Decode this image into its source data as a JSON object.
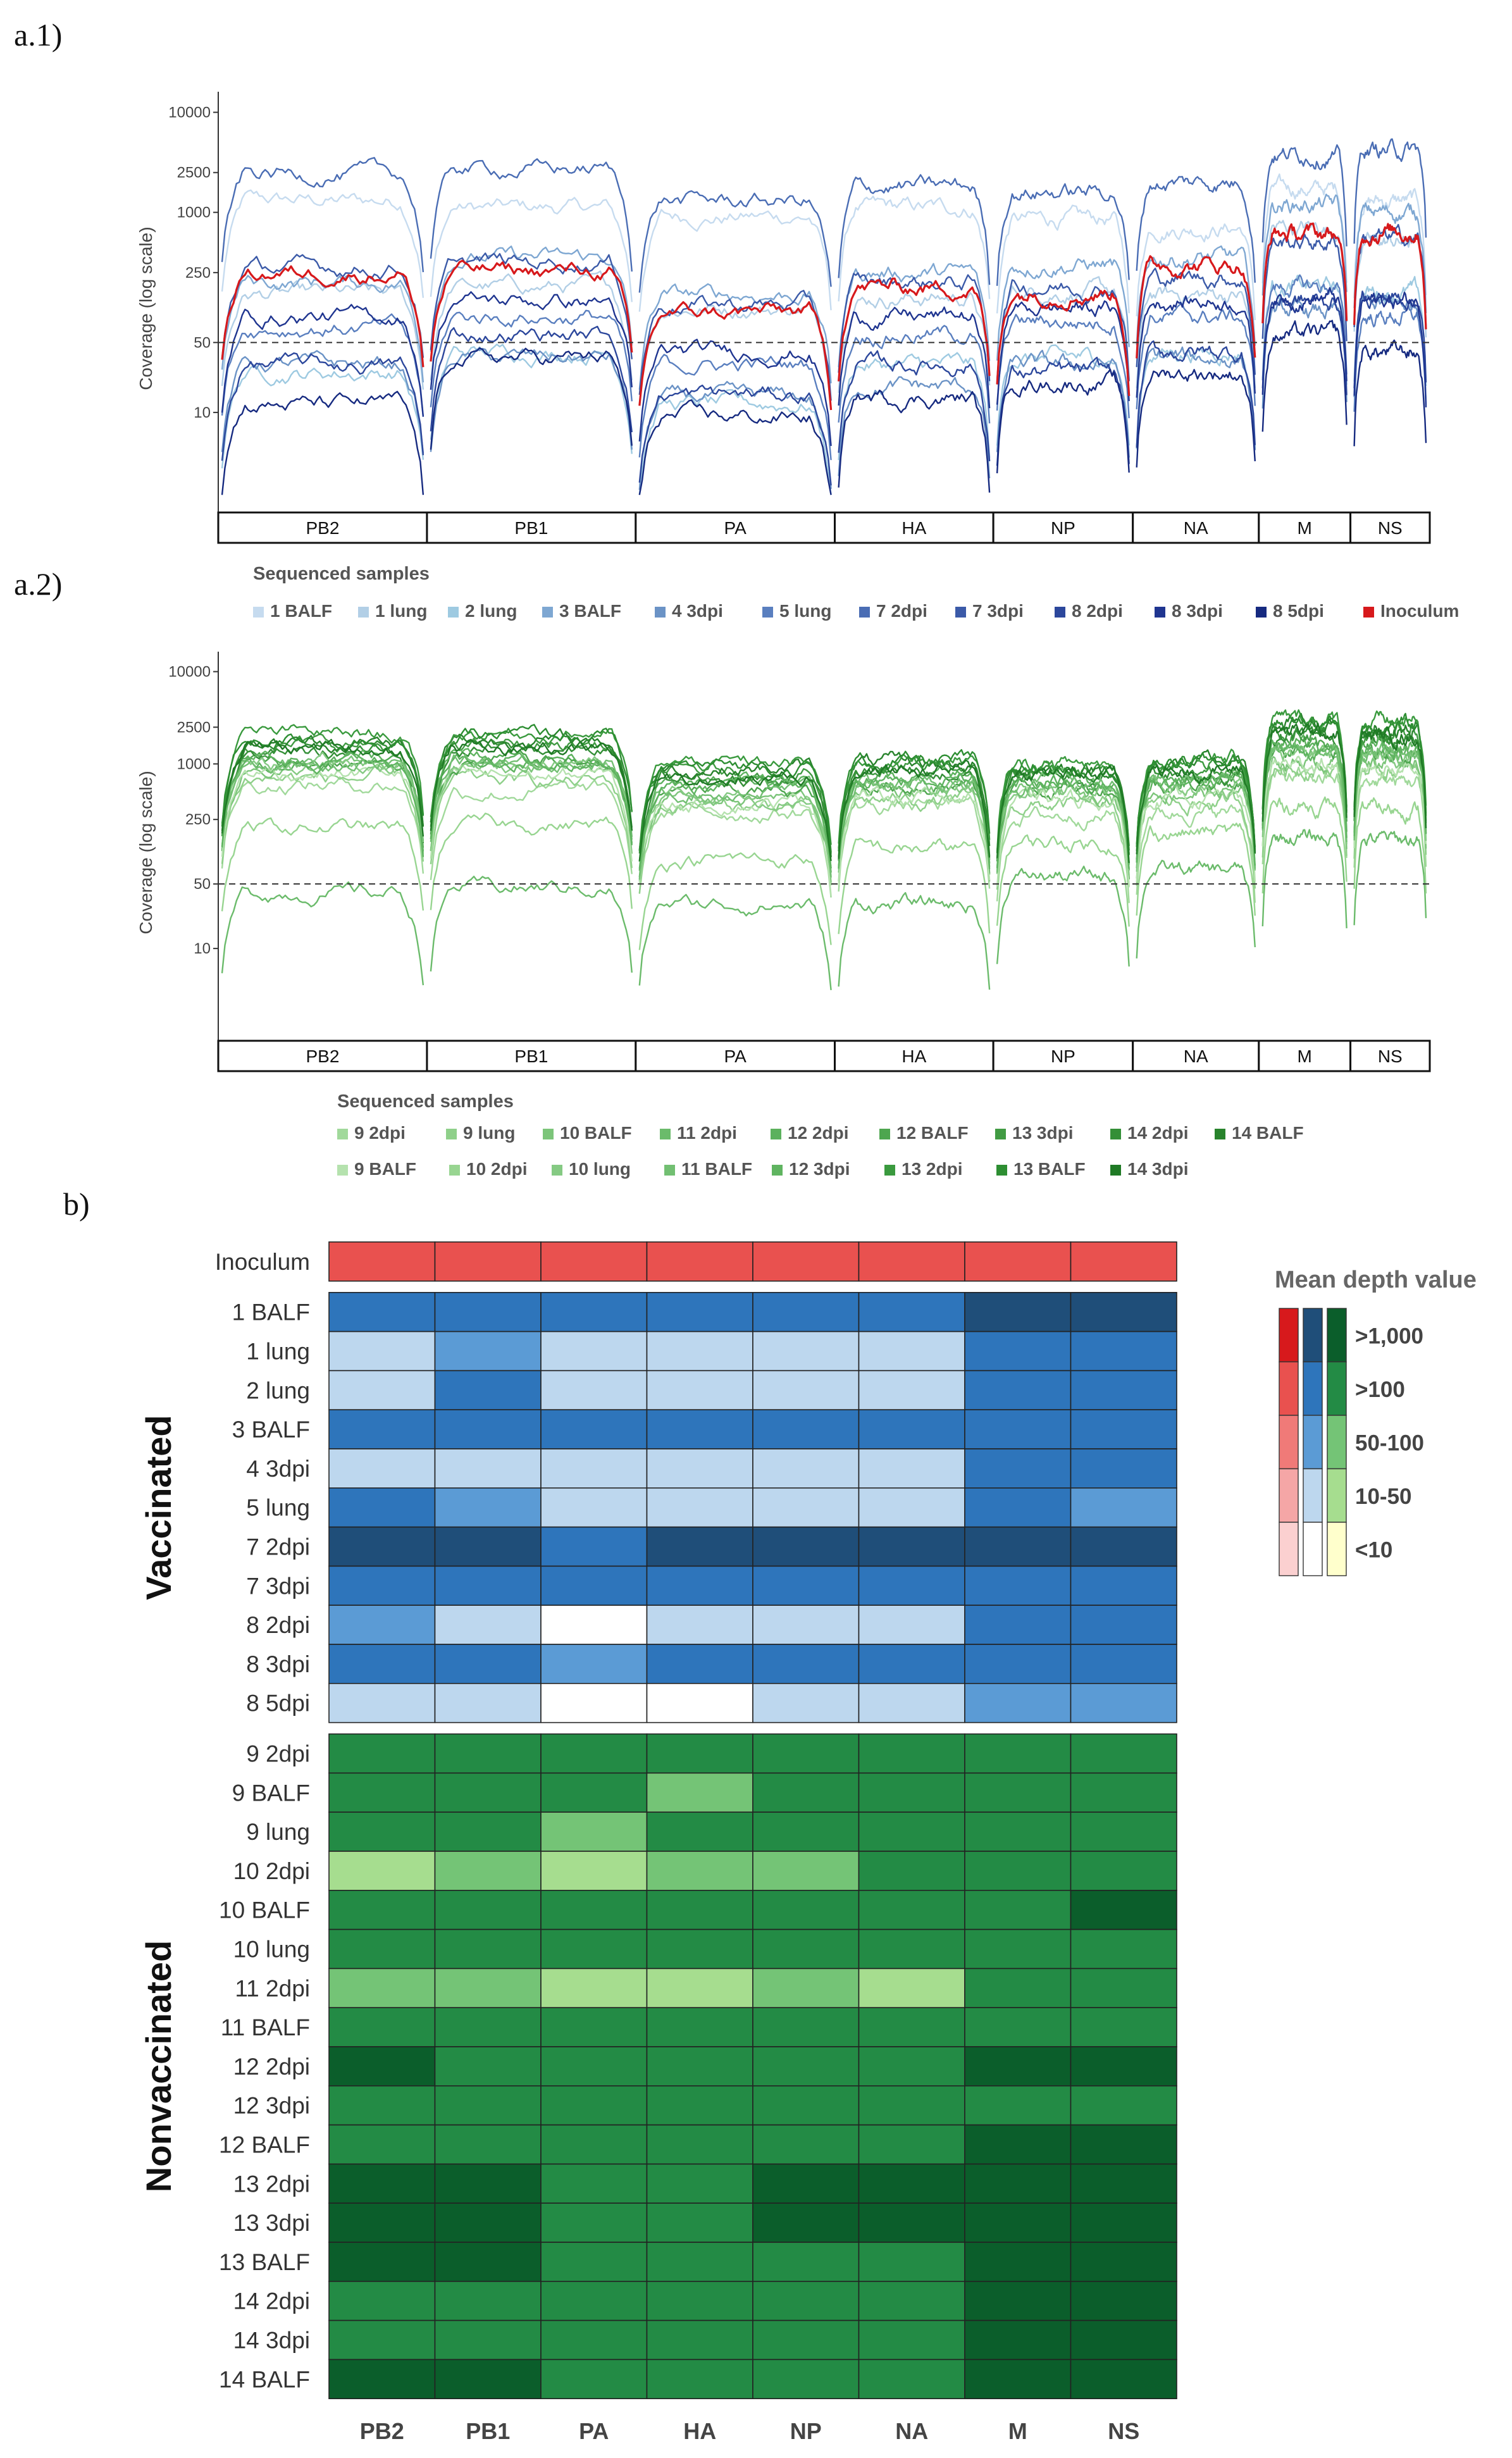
{
  "chart_data": [
    {
      "type": "line",
      "panel_label": "a.1)",
      "ylabel": "Coverage (log scale)",
      "y_ticks": [
        10,
        50,
        250,
        1000,
        2500,
        10000
      ],
      "ylim": [
        1,
        12000
      ],
      "y_scale": "log",
      "threshold": 50,
      "segments": [
        {
          "name": "PB2",
          "length": 2341
        },
        {
          "name": "PB1",
          "length": 2341
        },
        {
          "name": "PA",
          "length": 2233
        },
        {
          "name": "HA",
          "length": 1778
        },
        {
          "name": "NP",
          "length": 1565
        },
        {
          "name": "NA",
          "length": 1413
        },
        {
          "name": "M",
          "length": 1027
        },
        {
          "name": "NS",
          "length": 890
        }
      ],
      "legend_title": "Sequenced samples",
      "series": [
        {
          "name": "1 BALF",
          "color": "#c6dbef",
          "level": [
            1300,
            1100,
            900,
            1100,
            850,
            700,
            1700,
            1300
          ]
        },
        {
          "name": "1 lung",
          "color": "#b2cfe6",
          "level": [
            150,
            180,
            110,
            140,
            160,
            150,
            700,
            500
          ]
        },
        {
          "name": "2 lung",
          "color": "#9ecae1",
          "level": [
            25,
            40,
            12,
            30,
            35,
            40,
            180,
            160
          ]
        },
        {
          "name": "3 BALF",
          "color": "#7ea7d2",
          "level": [
            200,
            350,
            150,
            250,
            300,
            350,
            1200,
            1000
          ]
        },
        {
          "name": "4 3dpi",
          "color": "#6b93c6",
          "level": [
            30,
            35,
            14,
            18,
            30,
            35,
            100,
            120
          ]
        },
        {
          "name": "5 lung",
          "color": "#5a7fbf",
          "level": [
            70,
            90,
            30,
            60,
            80,
            90,
            180,
            90
          ]
        },
        {
          "name": "7 2dpi",
          "color": "#4a6db4",
          "level": [
            2400,
            2700,
            1300,
            1800,
            1600,
            2000,
            3800,
            4200
          ]
        },
        {
          "name": "7 3dpi",
          "color": "#3b5aa8",
          "level": [
            280,
            320,
            120,
            200,
            180,
            220,
            500,
            550
          ]
        },
        {
          "name": "8 2dpi",
          "color": "#2c479c",
          "level": [
            30,
            60,
            15,
            30,
            25,
            40,
            130,
            140
          ]
        },
        {
          "name": "8 3dpi",
          "color": "#1f3590",
          "level": [
            90,
            130,
            40,
            90,
            110,
            130,
            140,
            130
          ]
        },
        {
          "name": "8 5dpi",
          "color": "#162a80",
          "level": [
            12,
            35,
            9,
            14,
            20,
            25,
            60,
            40
          ]
        },
        {
          "name": "Inoculum",
          "color": "#d7191c",
          "level": [
            250,
            260,
            100,
            180,
            160,
            300,
            600,
            650
          ]
        }
      ]
    },
    {
      "type": "line",
      "panel_label": "a.2)",
      "ylabel": "Coverage (log scale)",
      "y_ticks": [
        10,
        50,
        250,
        1000,
        2500,
        10000
      ],
      "ylim": [
        1,
        12000
      ],
      "y_scale": "log",
      "threshold": 50,
      "segments": [
        {
          "name": "PB2",
          "length": 2341
        },
        {
          "name": "PB1",
          "length": 2341
        },
        {
          "name": "PA",
          "length": 2233
        },
        {
          "name": "HA",
          "length": 1778
        },
        {
          "name": "NP",
          "length": 1565
        },
        {
          "name": "NA",
          "length": 1413
        },
        {
          "name": "M",
          "length": 1027
        },
        {
          "name": "NS",
          "length": 890
        }
      ],
      "legend_title": "Sequenced samples",
      "series": [
        {
          "name": "9 2dpi",
          "color": "#a1d99b",
          "level": [
            600,
            500,
            300,
            350,
            280,
            300,
            700,
            650
          ]
        },
        {
          "name": "9 lung",
          "color": "#8fd08a",
          "level": [
            700,
            650,
            350,
            400,
            350,
            380,
            900,
            850
          ]
        },
        {
          "name": "10 BALF",
          "color": "#7cc57a",
          "level": [
            900,
            900,
            420,
            520,
            480,
            500,
            1100,
            1100
          ]
        },
        {
          "name": "11 2dpi",
          "color": "#6bbb6b",
          "level": [
            40,
            45,
            30,
            30,
            60,
            70,
            160,
            150
          ]
        },
        {
          "name": "12 2dpi",
          "color": "#5cb15d",
          "level": [
            1100,
            1200,
            600,
            700,
            650,
            700,
            1600,
            1500
          ]
        },
        {
          "name": "12 BALF",
          "color": "#4ea64f",
          "level": [
            1000,
            1050,
            500,
            600,
            560,
            620,
            1500,
            1400
          ]
        },
        {
          "name": "13 3dpi",
          "color": "#419b43",
          "level": [
            1600,
            1600,
            800,
            900,
            800,
            900,
            2300,
            2100
          ]
        },
        {
          "name": "14 2dpi",
          "color": "#348f37",
          "level": [
            1300,
            1400,
            700,
            800,
            750,
            820,
            2000,
            1900
          ]
        },
        {
          "name": "14 BALF",
          "color": "#28832c",
          "level": [
            1700,
            1800,
            900,
            1000,
            900,
            1000,
            2600,
            2400
          ]
        },
        {
          "name": "9 BALF",
          "color": "#b5e2ae",
          "level": [
            800,
            750,
            380,
            450,
            400,
            430,
            1000,
            950
          ]
        },
        {
          "name": "10 2dpi",
          "color": "#98d591",
          "level": [
            200,
            220,
            90,
            120,
            140,
            180,
            350,
            330
          ]
        },
        {
          "name": "10 lung",
          "color": "#85ca83",
          "level": [
            950,
            1000,
            460,
            560,
            520,
            560,
            1300,
            1200
          ]
        },
        {
          "name": "11 BALF",
          "color": "#72bf72",
          "level": [
            1050,
            1100,
            520,
            620,
            590,
            640,
            1450,
            1350
          ]
        },
        {
          "name": "12 3dpi",
          "color": "#5fb460",
          "level": [
            1150,
            1150,
            560,
            660,
            620,
            680,
            1550,
            1450
          ]
        },
        {
          "name": "13 2dpi",
          "color": "#3a9a3e",
          "level": [
            2100,
            2200,
            1000,
            1100,
            1000,
            1100,
            3000,
            2800
          ]
        },
        {
          "name": "13 BALF",
          "color": "#2d8e32",
          "level": [
            1900,
            2000,
            950,
            1050,
            950,
            1050,
            2800,
            2600
          ]
        },
        {
          "name": "14 3dpi",
          "color": "#1f7a25",
          "level": [
            1500,
            1500,
            750,
            850,
            780,
            850,
            2200,
            2000
          ]
        }
      ]
    },
    {
      "type": "heatmap",
      "panel_label": "b)",
      "columns": [
        "PB2",
        "PB1",
        "PA",
        "HA",
        "NP",
        "NA",
        "M",
        "NS"
      ],
      "legend_title": "Mean depth value",
      "legend_labels": [
        ">1,000",
        ">100",
        "50-100",
        "10-50",
        "<10"
      ],
      "palettes": {
        "red": [
          "#d7191c",
          "#e9514f",
          "#f07a78",
          "#f5a6a6",
          "#fbd0d0"
        ],
        "blue": [
          "#1f4e79",
          "#2e75bb",
          "#5b9bd5",
          "#bdd7ee",
          "#ffffff"
        ],
        "green": [
          "#0b5e2b",
          "#238b45",
          "#74c476",
          "#a6dd8f",
          "#ffffcc"
        ]
      },
      "groups": [
        {
          "name": "",
          "palette": "red",
          "rows": [
            {
              "label": "Inoculum",
              "values": [
                1,
                1,
                1,
                1,
                1,
                1,
                1,
                1
              ]
            }
          ]
        },
        {
          "name": "Vaccinated",
          "palette": "blue",
          "rows": [
            {
              "label": "1 BALF",
              "values": [
                1,
                1,
                1,
                1,
                1,
                1,
                0,
                0
              ]
            },
            {
              "label": "1 lung",
              "values": [
                3,
                2,
                3,
                3,
                3,
                3,
                1,
                1
              ]
            },
            {
              "label": "2 lung",
              "values": [
                3,
                1,
                3,
                3,
                3,
                3,
                1,
                1
              ]
            },
            {
              "label": "3 BALF",
              "values": [
                1,
                1,
                1,
                1,
                1,
                1,
                1,
                1
              ]
            },
            {
              "label": "4 3dpi",
              "values": [
                3,
                3,
                3,
                3,
                3,
                3,
                1,
                1
              ]
            },
            {
              "label": "5 lung",
              "values": [
                1,
                2,
                3,
                3,
                3,
                3,
                1,
                2
              ]
            },
            {
              "label": "7 2dpi",
              "values": [
                0,
                0,
                1,
                0,
                0,
                0,
                0,
                0
              ]
            },
            {
              "label": "7 3dpi",
              "values": [
                1,
                1,
                1,
                1,
                1,
                1,
                1,
                1
              ]
            },
            {
              "label": "8 2dpi",
              "values": [
                2,
                3,
                4,
                3,
                3,
                3,
                1,
                1
              ]
            },
            {
              "label": "8 3dpi",
              "values": [
                1,
                1,
                2,
                1,
                1,
                1,
                1,
                1
              ]
            },
            {
              "label": "8 5dpi",
              "values": [
                3,
                3,
                4,
                4,
                3,
                3,
                2,
                2
              ]
            }
          ]
        },
        {
          "name": "Nonvaccinated",
          "palette": "green",
          "rows": [
            {
              "label": "9 2dpi",
              "values": [
                1,
                1,
                1,
                1,
                1,
                1,
                1,
                1
              ]
            },
            {
              "label": "9 BALF",
              "values": [
                1,
                1,
                1,
                2,
                1,
                1,
                1,
                1
              ]
            },
            {
              "label": "9 lung",
              "values": [
                1,
                1,
                2,
                1,
                1,
                1,
                1,
                1
              ]
            },
            {
              "label": "10 2dpi",
              "values": [
                3,
                2,
                3,
                2,
                2,
                1,
                1,
                1
              ]
            },
            {
              "label": "10 BALF",
              "values": [
                1,
                1,
                1,
                1,
                1,
                1,
                1,
                0
              ]
            },
            {
              "label": "10 lung",
              "values": [
                1,
                1,
                1,
                1,
                1,
                1,
                1,
                1
              ]
            },
            {
              "label": "11 2dpi",
              "values": [
                2,
                2,
                3,
                3,
                2,
                3,
                1,
                1
              ]
            },
            {
              "label": "11 BALF",
              "values": [
                1,
                1,
                1,
                1,
                1,
                1,
                1,
                1
              ]
            },
            {
              "label": "12 2dpi",
              "values": [
                0,
                1,
                1,
                1,
                1,
                1,
                0,
                0
              ]
            },
            {
              "label": "12 3dpi",
              "values": [
                1,
                1,
                1,
                1,
                1,
                1,
                1,
                1
              ]
            },
            {
              "label": "12 BALF",
              "values": [
                1,
                1,
                1,
                1,
                1,
                1,
                0,
                0
              ]
            },
            {
              "label": "13 2dpi",
              "values": [
                0,
                0,
                1,
                1,
                0,
                0,
                0,
                0
              ]
            },
            {
              "label": "13 3dpi",
              "values": [
                0,
                0,
                1,
                1,
                0,
                0,
                0,
                0
              ]
            },
            {
              "label": "13 BALF",
              "values": [
                0,
                0,
                1,
                1,
                1,
                1,
                0,
                0
              ]
            },
            {
              "label": "14 2dpi",
              "values": [
                1,
                1,
                1,
                1,
                1,
                1,
                0,
                0
              ]
            },
            {
              "label": "14 3dpi",
              "values": [
                1,
                1,
                1,
                1,
                1,
                1,
                0,
                0
              ]
            },
            {
              "label": "14 BALF",
              "values": [
                0,
                0,
                1,
                1,
                1,
                1,
                0,
                0
              ]
            }
          ]
        }
      ]
    }
  ]
}
